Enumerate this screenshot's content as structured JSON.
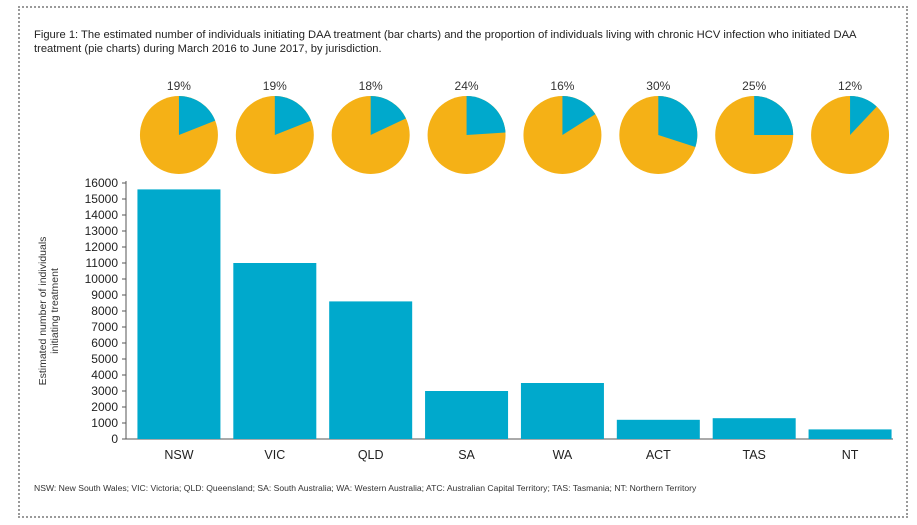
{
  "title": "Figure 1: The estimated number of individuals initiating DAA treatment (bar charts) and the proportion of individuals living with chronic HCV infection who initiated DAA treatment (pie charts) during March 2016 to June 2017, by jurisdiction.",
  "footnote": "NSW: New South Wales; VIC: Victoria; QLD: Queensland; SA: South Australia; WA: Western Australia; ATC: Australian Capital Territory; TAS: Tasmania; NT: Northern Territory",
  "colors": {
    "bar": "#00a9cc",
    "pie_primary": "#f5b116",
    "pie_share": "#00a9cc"
  },
  "chart_data": [
    {
      "type": "bar",
      "categories": [
        "NSW",
        "VIC",
        "QLD",
        "SA",
        "WA",
        "ACT",
        "TAS",
        "NT"
      ],
      "values": [
        15600,
        11000,
        8600,
        3000,
        3500,
        1200,
        1300,
        600
      ],
      "xlabel": "",
      "ylabel": "Estimated number of individuals initiating treatment",
      "ylim": [
        0,
        16000
      ],
      "yticks": [
        0,
        1000,
        2000,
        3000,
        4000,
        5000,
        6000,
        7000,
        8000,
        9000,
        10000,
        11000,
        12000,
        13000,
        14000,
        15000,
        16000
      ],
      "grid": false,
      "legend": "none"
    },
    {
      "type": "pie",
      "categories": [
        "NSW",
        "VIC",
        "QLD",
        "SA",
        "WA",
        "ACT",
        "TAS",
        "NT"
      ],
      "values": [
        19,
        19,
        18,
        24,
        16,
        30,
        25,
        12
      ],
      "labels": [
        "19%",
        "19%",
        "18%",
        "24%",
        "16%",
        "30%",
        "25%",
        "12%"
      ],
      "unit": "%"
    }
  ]
}
